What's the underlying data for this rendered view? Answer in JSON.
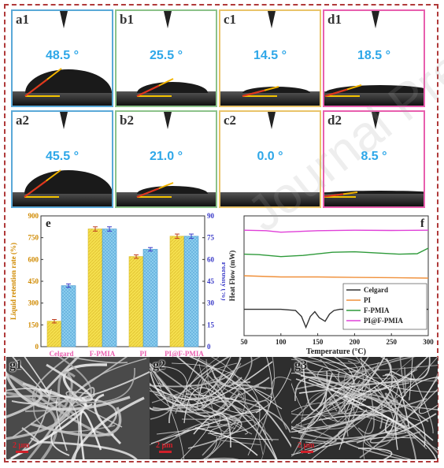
{
  "contact_angle_panels": [
    {
      "label": "a1",
      "angle": "48.5 °",
      "border": "#5aa9d8"
    },
    {
      "label": "b1",
      "angle": "25.5 °",
      "border": "#8cc28a"
    },
    {
      "label": "c1",
      "angle": "14.5 °",
      "border": "#e9c46a"
    },
    {
      "label": "d1",
      "angle": "18.5 °",
      "border": "#e85fae"
    },
    {
      "label": "a2",
      "angle": "45.5 °",
      "border": "#5aa9d8"
    },
    {
      "label": "b2",
      "angle": "21.0 °",
      "border": "#8cc28a"
    },
    {
      "label": "c2",
      "angle": "0.0 °",
      "border": "#e9c46a"
    },
    {
      "label": "d2",
      "angle": "8.5 °",
      "border": "#e85fae"
    }
  ],
  "sem_panels": [
    {
      "label": "g1",
      "scale": "2 μm"
    },
    {
      "label": "g2",
      "scale": "2 μm"
    },
    {
      "label": "g3",
      "scale": "2 μm"
    }
  ],
  "watermark": "Journal Pre-proofs",
  "chart_data": [
    {
      "type": "bar",
      "panel_label": "e",
      "categories": [
        "Celgard",
        "F-PMIA",
        "PI",
        "PI@F-PMIA"
      ],
      "series": [
        {
          "name": "Liquid retention rate (%)",
          "values": [
            175,
            810,
            620,
            760
          ],
          "errors": [
            12,
            15,
            12,
            15
          ],
          "color": "#f5e04e",
          "axis": "left"
        },
        {
          "name": "Porosity (%)",
          "values": [
            42,
            81,
            67,
            76
          ],
          "errors": [
            1.2,
            1.5,
            1.2,
            1.5
          ],
          "color": "#8fd0f0",
          "axis": "right"
        }
      ],
      "ylabel": "Liquid retention rate (%)",
      "ylabel_right": "Porosity (%)",
      "ylim": [
        0,
        900
      ],
      "ylim_right": [
        0,
        90
      ],
      "yticks": [
        "0",
        "150",
        "300",
        "450",
        "600",
        "750",
        "900"
      ],
      "yticks_right": [
        "0",
        "15",
        "30",
        "45",
        "60",
        "75",
        "90"
      ],
      "category_colors": [
        "#e85fae",
        "#e85fae",
        "#e85fae",
        "#e85fae"
      ]
    },
    {
      "type": "line",
      "panel_label": "f",
      "xlabel": "Temperature (°C)",
      "ylabel": "Heat Flow (mW)",
      "xlim": [
        50,
        300
      ],
      "xticks": [
        "50",
        "100",
        "150",
        "200",
        "250",
        "300"
      ],
      "legend_position": "bottom-right",
      "series": [
        {
          "name": "Celgard",
          "color": "#333333",
          "x": [
            50,
            100,
            120,
            128,
            134,
            140,
            146,
            152,
            160,
            166,
            172,
            180,
            200,
            250,
            300
          ],
          "y": [
            0.0,
            0.0,
            -0.05,
            -0.3,
            -0.75,
            -0.3,
            -0.1,
            -0.35,
            -0.5,
            -0.2,
            -0.05,
            0.0,
            0.0,
            0.0,
            0.0
          ]
        },
        {
          "name": "PI",
          "color": "#f0903a",
          "x": [
            50,
            100,
            150,
            200,
            250,
            300
          ],
          "y": [
            1.4,
            1.35,
            1.35,
            1.33,
            1.32,
            1.3
          ]
        },
        {
          "name": "F-PMIA",
          "color": "#2e9a3a",
          "x": [
            50,
            70,
            100,
            130,
            170,
            200,
            230,
            260,
            285,
            300
          ],
          "y": [
            2.3,
            2.28,
            2.2,
            2.25,
            2.38,
            2.4,
            2.35,
            2.3,
            2.32,
            2.55
          ]
        },
        {
          "name": "PI@F-PMIA",
          "color": "#e040d8",
          "x": [
            50,
            80,
            100,
            150,
            200,
            250,
            300
          ],
          "y": [
            3.3,
            3.28,
            3.22,
            3.28,
            3.3,
            3.29,
            3.3
          ]
        }
      ]
    }
  ]
}
